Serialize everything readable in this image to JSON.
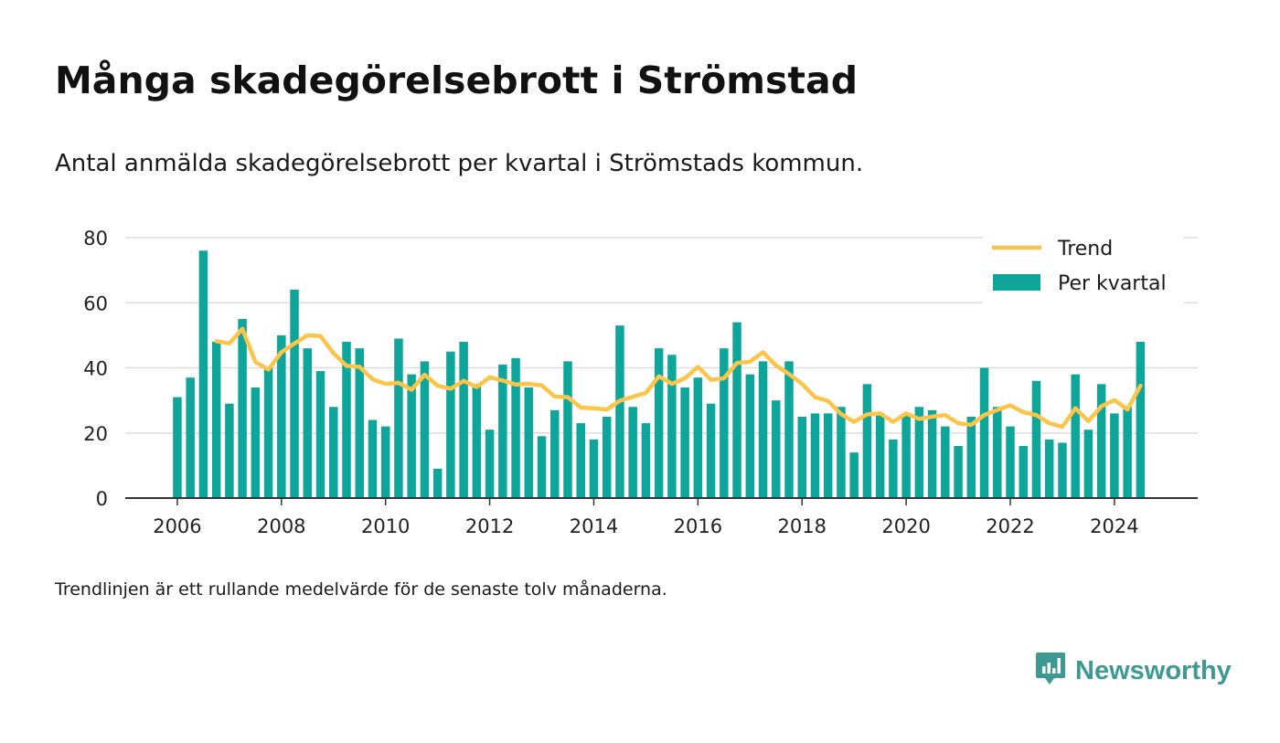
{
  "header": {
    "title": "Många skadegörelsebrott i Strömstad",
    "subtitle": "Antal anmälda skadegörelsebrott per kvartal i Strömstads kommun."
  },
  "footnote": "Trendlinjen är ett rullande medelvärde för de senaste tolv månaderna.",
  "brand": {
    "name": "Newsworthy",
    "icon": "newsworthy-logo-icon"
  },
  "colors": {
    "bar": "#0ea69a",
    "trend": "#fcc54a",
    "grid": "#dddddd",
    "axis": "#333333",
    "brand": "#3d9a92"
  },
  "chart_data": {
    "type": "bar",
    "x_start_year": 2006,
    "x_step": 0.25,
    "xticks": [
      "2006",
      "2008",
      "2010",
      "2012",
      "2014",
      "2016",
      "2018",
      "2020",
      "2022",
      "2024"
    ],
    "yticks": [
      "0",
      "20",
      "40",
      "60",
      "80"
    ],
    "ylim": [
      0,
      80
    ],
    "xlim": [
      2005.0,
      2025.6
    ],
    "grid": true,
    "legend_position": "top-right",
    "series": [
      {
        "name": "Per kvartal",
        "type": "bar",
        "values": [
          31,
          37,
          76,
          48,
          29,
          55,
          34,
          40,
          50,
          64,
          46,
          39,
          28,
          48,
          46,
          24,
          22,
          49,
          38,
          42,
          9,
          45,
          48,
          35,
          21,
          41,
          43,
          34,
          19,
          27,
          42,
          23,
          18,
          25,
          53,
          28,
          23,
          46,
          44,
          34,
          37,
          29,
          46,
          54,
          38,
          42,
          30,
          42,
          25,
          26,
          26,
          28,
          14,
          35,
          26,
          18,
          26,
          28,
          27,
          22,
          16,
          25,
          40,
          28,
          22,
          16,
          36,
          18,
          17,
          38,
          21,
          35,
          26,
          28,
          48
        ]
      },
      {
        "name": "Trend",
        "type": "line",
        "values": [
          null,
          null,
          null,
          48.2,
          47.5,
          52,
          41.8,
          39.5,
          44.8,
          47.5,
          50,
          49.8,
          44.5,
          40.6,
          40.3,
          36.5,
          35.1,
          35.4,
          33.3,
          37.9,
          34.5,
          33.6,
          36,
          34.1,
          37.1,
          36.1,
          34.9,
          35.1,
          34.6,
          31.2,
          31,
          27.8,
          27.6,
          27.2,
          29.9,
          31.1,
          32.3,
          37.4,
          35.1,
          36.8,
          40.3,
          36.3,
          36.8,
          41.5,
          41.9,
          44.8,
          40.7,
          38.1,
          35.1,
          31,
          29.8,
          25.8,
          23.4,
          25.7,
          26,
          23.4,
          26,
          24.3,
          25,
          25.5,
          23,
          22.5,
          25.5,
          27.1,
          28.5,
          26.4,
          25.5,
          23,
          21.9,
          27.6,
          23.6,
          28.2,
          30.1,
          27.2,
          34.5
        ]
      }
    ]
  }
}
